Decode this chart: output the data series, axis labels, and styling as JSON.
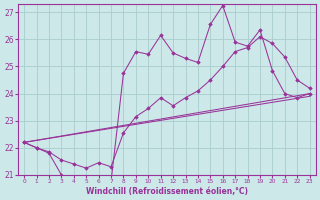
{
  "xlabel": "Windchill (Refroidissement éolien,°C)",
  "xlim": [
    -0.5,
    23.5
  ],
  "ylim": [
    21,
    27.3
  ],
  "yticks": [
    21,
    22,
    23,
    24,
    25,
    26,
    27
  ],
  "xticks": [
    0,
    1,
    2,
    3,
    4,
    5,
    6,
    7,
    8,
    9,
    10,
    11,
    12,
    13,
    14,
    15,
    16,
    17,
    18,
    19,
    20,
    21,
    22,
    23
  ],
  "bg_color": "#cce8e8",
  "line_color": "#993399",
  "grid_color": "#aacccc",
  "series1_x": [
    0,
    1,
    2,
    3,
    4,
    5,
    6,
    7,
    8,
    9,
    10,
    11,
    12,
    13,
    14,
    15,
    16,
    17,
    18,
    19,
    20,
    21,
    22,
    23
  ],
  "series1_y": [
    22.2,
    22.0,
    21.8,
    21.0,
    20.85,
    20.75,
    20.85,
    20.75,
    24.75,
    25.55,
    25.45,
    26.15,
    25.5,
    25.3,
    25.15,
    26.55,
    27.25,
    25.9,
    25.75,
    26.35,
    24.85,
    24.0,
    23.85,
    24.0
  ],
  "series2_x": [
    0,
    1,
    2,
    3,
    4,
    5,
    6,
    7,
    8,
    9,
    10,
    11,
    12,
    13,
    14,
    15,
    16,
    17,
    18,
    19,
    20,
    21,
    22,
    23
  ],
  "series2_y": [
    22.2,
    22.0,
    21.85,
    21.55,
    21.4,
    21.25,
    21.45,
    21.3,
    22.55,
    23.15,
    23.45,
    23.85,
    23.55,
    23.85,
    24.1,
    24.5,
    25.0,
    25.55,
    25.7,
    26.1,
    25.85,
    25.35,
    24.5,
    24.2
  ],
  "series3_x": [
    0,
    23
  ],
  "series3_y": [
    22.2,
    23.9
  ],
  "series4_x": [
    0,
    23
  ],
  "series4_y": [
    22.2,
    24.0
  ]
}
